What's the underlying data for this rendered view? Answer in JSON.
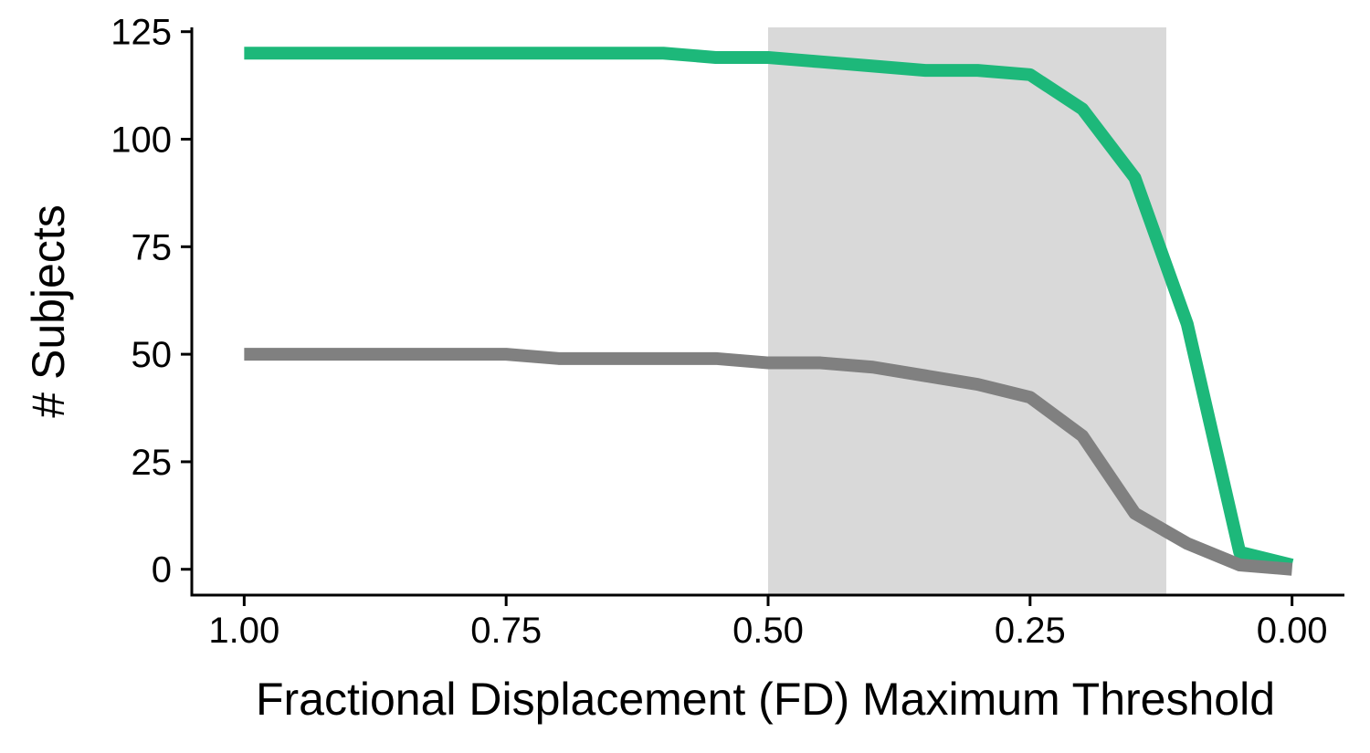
{
  "chart_data": {
    "type": "line",
    "xlabel": "Fractional Displacement (FD) Maximum Threshold",
    "ylabel": "# Subjects",
    "xlim": [
      1.05,
      -0.05
    ],
    "ylim": [
      -6,
      126
    ],
    "x_reversed": true,
    "x_ticks": [
      1.0,
      0.75,
      0.5,
      0.25,
      0.0
    ],
    "x_tick_labels": [
      "1.00",
      "0.75",
      "0.50",
      "0.25",
      "0.00"
    ],
    "y_ticks": [
      0,
      25,
      50,
      75,
      100,
      125
    ],
    "y_tick_labels": [
      "0",
      "25",
      "50",
      "75",
      "100",
      "125"
    ],
    "grid": false,
    "shaded_region": {
      "x_range": [
        0.5,
        0.12
      ],
      "color": "#d9d9d9"
    },
    "x": [
      1.0,
      0.95,
      0.9,
      0.85,
      0.8,
      0.75,
      0.7,
      0.65,
      0.6,
      0.55,
      0.5,
      0.45,
      0.4,
      0.35,
      0.3,
      0.25,
      0.2,
      0.15,
      0.1,
      0.05,
      0.0
    ],
    "series": [
      {
        "color": "#1db87a",
        "values": [
          120,
          120,
          120,
          120,
          120,
          120,
          120,
          120,
          120,
          119,
          119,
          118,
          117,
          116,
          116,
          115,
          107,
          91,
          57,
          4,
          1
        ]
      },
      {
        "color": "#808080",
        "values": [
          50,
          50,
          50,
          50,
          50,
          50,
          49,
          49,
          49,
          49,
          48,
          48,
          47,
          45,
          43,
          40,
          31,
          13,
          6,
          1,
          0
        ]
      }
    ]
  }
}
